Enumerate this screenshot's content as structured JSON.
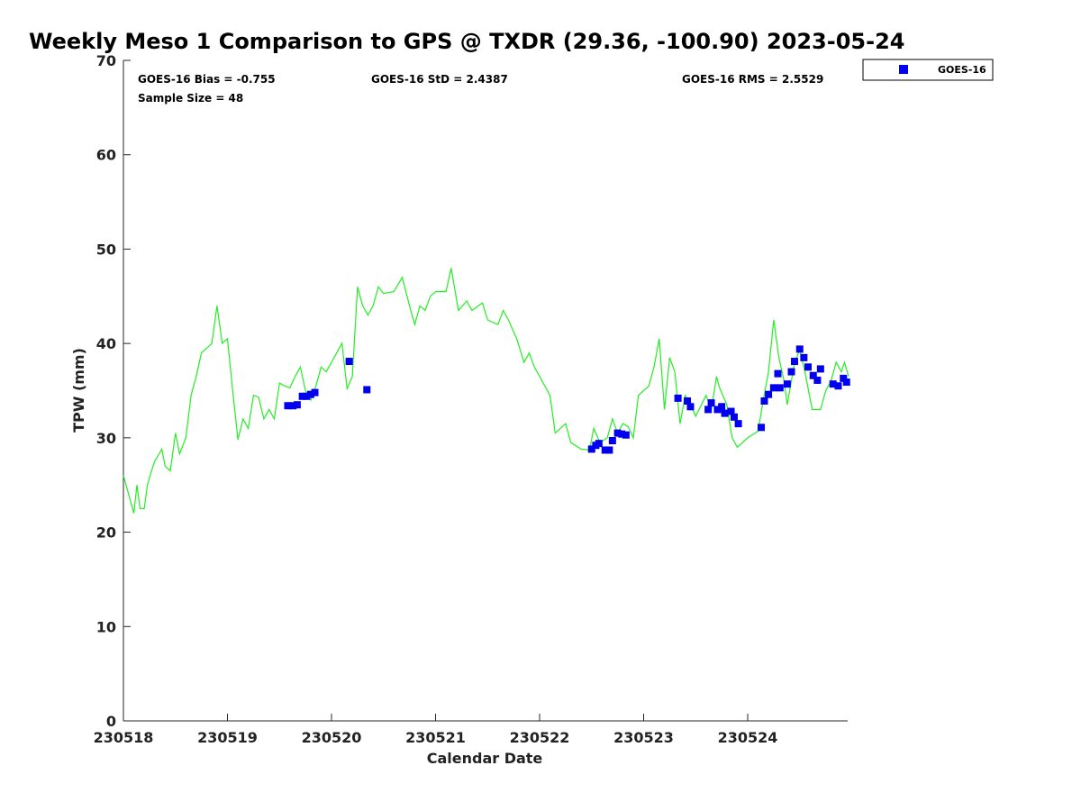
{
  "chart_data": {
    "type": "line",
    "title": "Weekly Meso 1 Comparison to GPS @ TXDR (29.36, -100.90) 2023-05-24",
    "xlabel": "Calendar Date",
    "ylabel": "TPW (mm)",
    "xlim_days": [
      0,
      6.97
    ],
    "ylim": [
      0,
      70
    ],
    "yticks": [
      0,
      10,
      20,
      30,
      40,
      50,
      60,
      70
    ],
    "xticks": [
      "230518",
      "230519",
      "230520",
      "230521",
      "230522",
      "230523",
      "230524"
    ],
    "legend": {
      "placement": "top-right outside",
      "entries": [
        "GOES-16"
      ]
    },
    "stats": {
      "bias": "GOES-16 Bias = -0.755",
      "std": "GOES-16 StD = 2.4387",
      "rms": "GOES-16 RMS = 2.5529",
      "sample": "Sample Size = 48"
    },
    "colors": {
      "goes": "#0000ee",
      "gps": "#22ee22"
    },
    "series": [
      {
        "name": "GPS",
        "style": "line",
        "x": [
          0,
          0.1,
          0.13,
          0.16,
          0.2,
          0.23,
          0.27,
          0.3,
          0.37,
          0.4,
          0.45,
          0.5,
          0.54,
          0.6,
          0.65,
          0.7,
          0.75,
          0.8,
          0.85,
          0.9,
          0.95,
          1.0,
          1.05,
          1.1,
          1.15,
          1.2,
          1.25,
          1.3,
          1.35,
          1.4,
          1.45,
          1.5,
          1.55,
          1.6,
          1.65,
          1.7,
          1.75,
          1.8,
          1.85,
          1.9,
          1.95,
          2.0,
          2.1,
          2.15,
          2.2,
          2.25,
          2.3,
          2.35,
          2.4,
          2.45,
          2.5,
          2.6,
          2.68,
          2.75,
          2.8,
          2.85,
          2.9,
          2.95,
          3.0,
          3.1,
          3.15,
          3.22,
          3.3,
          3.35,
          3.45,
          3.5,
          3.6,
          3.65,
          3.7,
          3.78,
          3.85,
          3.9,
          3.95,
          4.0,
          4.1,
          4.15,
          4.25,
          4.3,
          4.4,
          4.48,
          4.52,
          4.58,
          4.65,
          4.7,
          4.75,
          4.8,
          4.85,
          4.9,
          4.95,
          5.05,
          5.1,
          5.15,
          5.2,
          5.25,
          5.3,
          5.35,
          5.4,
          5.45,
          5.5,
          5.6,
          5.65,
          5.7,
          5.73,
          5.8,
          5.85,
          5.9,
          6.0,
          6.1,
          6.15,
          6.2,
          6.25,
          6.3,
          6.35,
          6.38,
          6.45,
          6.5,
          6.55,
          6.62,
          6.7,
          6.75,
          6.8,
          6.85,
          6.9,
          6.93,
          6.97
        ],
        "y": [
          26,
          22,
          25,
          22.5,
          22.5,
          25,
          26.5,
          27.5,
          28.8,
          27,
          26.5,
          30.5,
          28.3,
          30,
          34.5,
          36.5,
          39,
          39.5,
          40,
          44,
          40,
          40.5,
          35,
          29.8,
          32,
          31,
          34.5,
          34.3,
          32,
          33,
          32,
          35.8,
          35.5,
          35.3,
          36.5,
          37.5,
          35,
          34,
          35.5,
          37.5,
          37,
          38,
          40,
          35.2,
          36.5,
          46,
          44,
          43,
          44,
          46,
          45.3,
          45.5,
          47,
          44,
          42,
          44,
          43.5,
          45,
          45.5,
          45.5,
          48,
          43.5,
          44.5,
          43.5,
          44.3,
          42.5,
          42,
          43.5,
          42.5,
          40.5,
          38,
          39,
          37.5,
          36.5,
          34.5,
          30.5,
          31.5,
          29.5,
          28.8,
          28.7,
          31,
          29.5,
          30,
          32,
          30.5,
          31.5,
          31.2,
          30,
          34.5,
          35.5,
          37.5,
          40.5,
          33,
          38.5,
          37,
          31.5,
          34.5,
          33.5,
          32.3,
          34.5,
          33,
          36.5,
          35.3,
          33.5,
          30,
          29,
          30,
          30.7,
          34,
          37,
          42.5,
          38.5,
          36,
          33.5,
          38,
          39.3,
          37,
          33,
          33,
          35,
          36,
          38,
          37,
          38,
          36.5
        ]
      },
      {
        "name": "GOES-16",
        "style": "square-markers",
        "x": [
          1.58,
          1.63,
          1.67,
          1.72,
          1.76,
          1.8,
          1.84,
          2.17,
          2.34,
          4.5,
          4.54,
          4.57,
          4.63,
          4.67,
          4.7,
          4.75,
          4.79,
          4.83,
          5.33,
          5.42,
          5.45,
          5.62,
          5.65,
          5.71,
          5.75,
          5.78,
          5.84,
          5.87,
          5.91,
          6.13,
          6.16,
          6.2,
          6.25,
          6.29,
          6.31,
          6.38,
          6.42,
          6.45,
          6.5,
          6.54,
          6.58,
          6.63,
          6.67,
          6.7,
          6.82,
          6.87,
          6.92,
          6.95
        ],
        "y": [
          33.4,
          33.4,
          33.5,
          34.4,
          34.4,
          34.6,
          34.8,
          38.1,
          35.1,
          28.8,
          29.2,
          29.4,
          28.7,
          28.7,
          29.7,
          30.5,
          30.4,
          30.3,
          34.2,
          33.9,
          33.3,
          33.0,
          33.7,
          33.0,
          33.3,
          32.6,
          32.8,
          32.2,
          31.5,
          31.1,
          33.9,
          34.6,
          35.3,
          36.8,
          35.3,
          35.7,
          37.0,
          38.1,
          39.4,
          38.5,
          37.5,
          36.6,
          36.1,
          37.3,
          35.7,
          35.5,
          36.3,
          35.9
        ]
      }
    ]
  }
}
